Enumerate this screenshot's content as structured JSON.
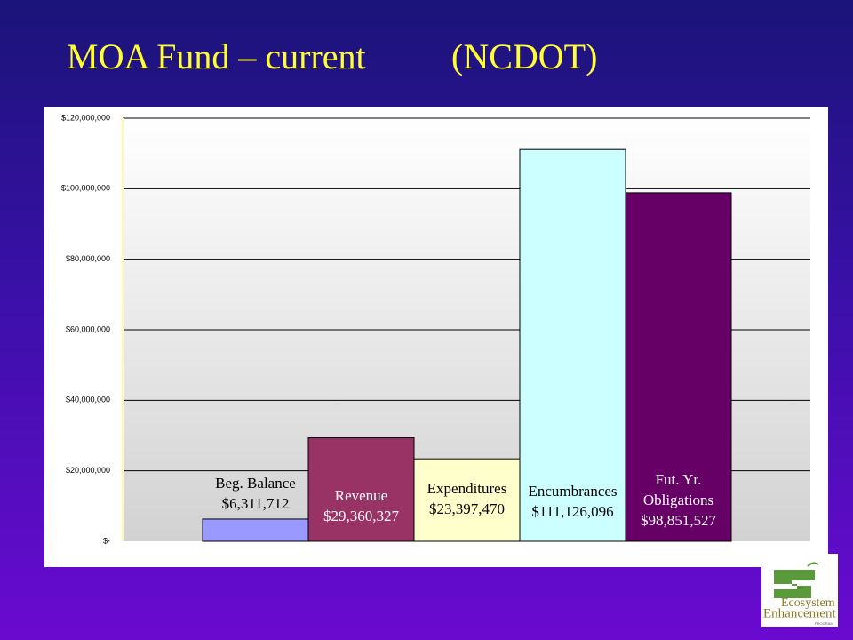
{
  "chart_data": {
    "type": "bar",
    "title": "MOA Fund – current",
    "title_note": "(NCDOT)",
    "categories": [
      "Beg. Balance",
      "Revenue",
      "Expenditures",
      "Encumbrances",
      "Fut. Yr. Obligations"
    ],
    "values": [
      6311712,
      29360327,
      23397470,
      111126096,
      98851527
    ],
    "value_labels": [
      "$6,311,712",
      "$29,360,327",
      "$23,397,470",
      "$111,126,096",
      "$98,851,527"
    ],
    "colors": [
      "#9999ff",
      "#993366",
      "#ffffcc",
      "#ccffff",
      "#660066"
    ],
    "ylim": [
      0,
      120000000
    ],
    "yticks": [
      {
        "value": 0,
        "label": "$-"
      },
      {
        "value": 20000000,
        "label": "$20,000,000"
      },
      {
        "value": 40000000,
        "label": "$40,000,000"
      },
      {
        "value": 60000000,
        "label": "$60,000,000"
      },
      {
        "value": 80000000,
        "label": "$80,000,000"
      },
      {
        "value": 100000000,
        "label": "$100,000,000"
      },
      {
        "value": 120000000,
        "label": "$120,000,000"
      }
    ],
    "grid": true
  },
  "logo": {
    "line1": "Ecosystem",
    "line2": "Enhancement",
    "line3": "PROGRAM"
  }
}
